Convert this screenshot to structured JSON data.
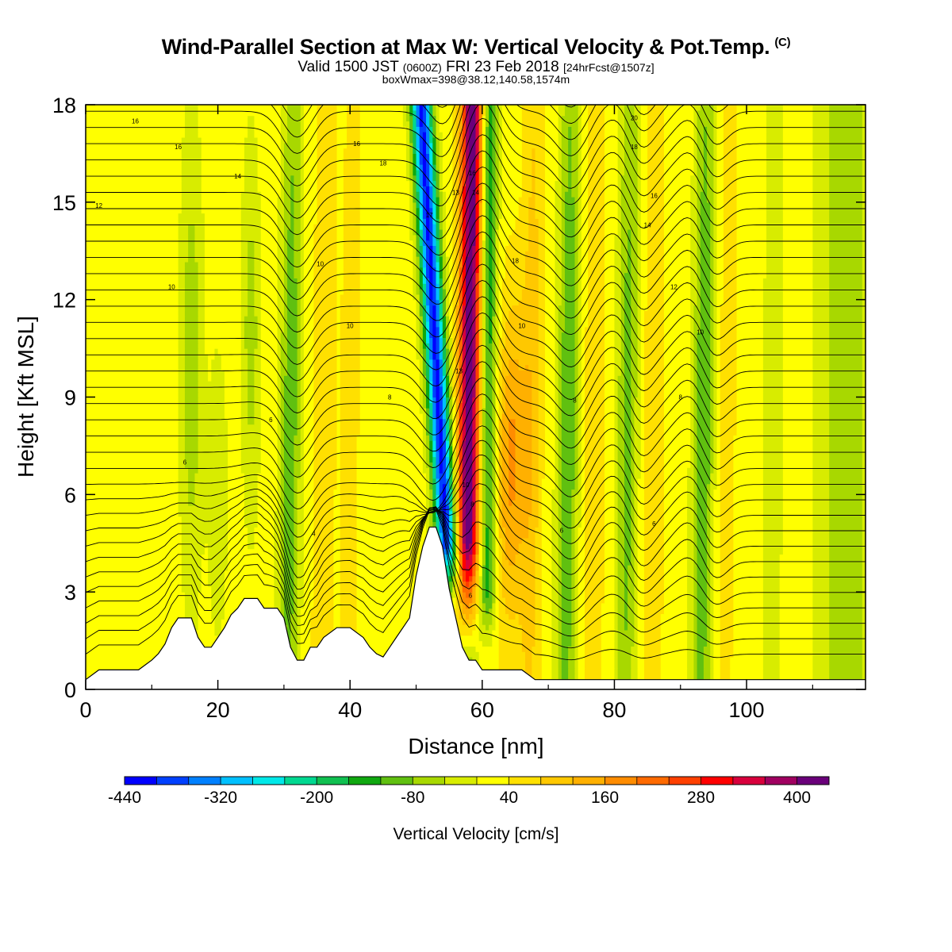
{
  "header": {
    "title": "Wind-Parallel Section at Max W: Vertical Velocity & Pot.Temp.",
    "title_mark": "(C)",
    "valid_main": "Valid 1500 JST",
    "valid_utc": "(0600Z)",
    "valid_date": "FRI 23 Feb 2018",
    "forecast": "[24hrFcst@1507z]",
    "box_info": "boxWmax=398@38.12,140.58,1574m"
  },
  "chart_data": {
    "type": "heatmap",
    "xlabel": "Distance [nm]",
    "ylabel": "Height [Kft MSL]",
    "xlim": [
      0,
      118
    ],
    "ylim": [
      0,
      18
    ],
    "xticks": [
      0,
      20,
      40,
      60,
      80,
      100
    ],
    "yticks": [
      0,
      3,
      6,
      9,
      12,
      15,
      18
    ],
    "colorbar": {
      "label": "Vertical Velocity [cm/s]",
      "min": -440,
      "max": 440,
      "step": 40,
      "tick_labels": [
        -440,
        -320,
        -200,
        -80,
        40,
        160,
        280,
        400
      ],
      "colors": [
        "#0000ff",
        "#0040ff",
        "#0080ff",
        "#00c0ff",
        "#00e8e8",
        "#00d890",
        "#10c050",
        "#10a810",
        "#60c010",
        "#a8d800",
        "#d8ec00",
        "#ffff00",
        "#ffe000",
        "#ffc800",
        "#ffb000",
        "#ff8c00",
        "#ff6a00",
        "#ff4000",
        "#ff0000",
        "#d8003c",
        "#a00060",
        "#6a007a"
      ]
    },
    "terrain": {
      "x": [
        0,
        2,
        4,
        6,
        8,
        10,
        11,
        12,
        13,
        14,
        16,
        17,
        18,
        19,
        20,
        21,
        22,
        23,
        24,
        25,
        26,
        27,
        28,
        29,
        30,
        31,
        32,
        33,
        34,
        35,
        36,
        38,
        40,
        42,
        43,
        44,
        45,
        46,
        47,
        48,
        49,
        50,
        51,
        52,
        53,
        54,
        55,
        56,
        57,
        58,
        59,
        60,
        61,
        62,
        64,
        66,
        68,
        70,
        75,
        80,
        85,
        90,
        95,
        100,
        105,
        110,
        118
      ],
      "height": [
        0.3,
        0.6,
        0.6,
        0.6,
        0.6,
        0.9,
        1.1,
        1.4,
        1.9,
        2.2,
        2.2,
        1.6,
        1.3,
        1.3,
        1.6,
        1.9,
        2.3,
        2.5,
        2.8,
        2.8,
        2.8,
        2.5,
        2.5,
        2.5,
        2.2,
        1.3,
        0.9,
        0.9,
        1.3,
        1.3,
        1.6,
        1.9,
        1.9,
        1.6,
        1.3,
        1.1,
        1.0,
        1.3,
        1.6,
        1.9,
        2.2,
        3.5,
        4.4,
        5.0,
        5.0,
        4.4,
        3.1,
        2.2,
        1.3,
        0.9,
        0.9,
        0.6,
        0.6,
        0.6,
        0.6,
        0.6,
        0.3,
        0.3,
        0.3,
        0.3,
        0.3,
        0.3,
        0.3,
        0.3,
        0.3,
        0.3,
        0.3
      ]
    },
    "theta_contour_labels": [
      {
        "x": 7.5,
        "y": 17.5,
        "label": "16"
      },
      {
        "x": 14,
        "y": 16.7,
        "label": "16"
      },
      {
        "x": 41,
        "y": 16.8,
        "label": "16"
      },
      {
        "x": 45,
        "y": 16.2,
        "label": "18"
      },
      {
        "x": 23,
        "y": 15.8,
        "label": "14"
      },
      {
        "x": 2,
        "y": 14.9,
        "label": "12"
      },
      {
        "x": 35.5,
        "y": 13.1,
        "label": "10"
      },
      {
        "x": 13,
        "y": 12.4,
        "label": "10"
      },
      {
        "x": 40,
        "y": 11.2,
        "label": "10"
      },
      {
        "x": 46,
        "y": 9.0,
        "label": "8"
      },
      {
        "x": 28,
        "y": 8.3,
        "label": "6"
      },
      {
        "x": 15,
        "y": 7.0,
        "label": "6"
      },
      {
        "x": 34.5,
        "y": 4.8,
        "label": "4"
      },
      {
        "x": 52,
        "y": 14.6,
        "label": "17"
      },
      {
        "x": 56,
        "y": 15.3,
        "label": "13"
      },
      {
        "x": 58.5,
        "y": 15.9,
        "label": "16"
      },
      {
        "x": 59,
        "y": 15.3,
        "label": "14"
      },
      {
        "x": 65,
        "y": 13.2,
        "label": "18"
      },
      {
        "x": 66,
        "y": 11.2,
        "label": "10"
      },
      {
        "x": 56.5,
        "y": 9.8,
        "label": "13"
      },
      {
        "x": 57.5,
        "y": 6.3,
        "label": "10"
      },
      {
        "x": 58.5,
        "y": 5.7,
        "label": "8"
      },
      {
        "x": 58.2,
        "y": 2.9,
        "label": "6"
      },
      {
        "x": 83,
        "y": 17.6,
        "label": "20"
      },
      {
        "x": 83,
        "y": 16.7,
        "label": "18"
      },
      {
        "x": 86,
        "y": 15.2,
        "label": "16"
      },
      {
        "x": 85,
        "y": 14.3,
        "label": "14"
      },
      {
        "x": 89,
        "y": 12.4,
        "label": "12"
      },
      {
        "x": 93,
        "y": 11.0,
        "label": "10"
      },
      {
        "x": 74,
        "y": 8.9,
        "label": "8"
      },
      {
        "x": 90,
        "y": 9.0,
        "label": "8"
      },
      {
        "x": 72,
        "y": 4.9,
        "label": "6"
      },
      {
        "x": 86,
        "y": 5.1,
        "label": "6"
      }
    ]
  }
}
